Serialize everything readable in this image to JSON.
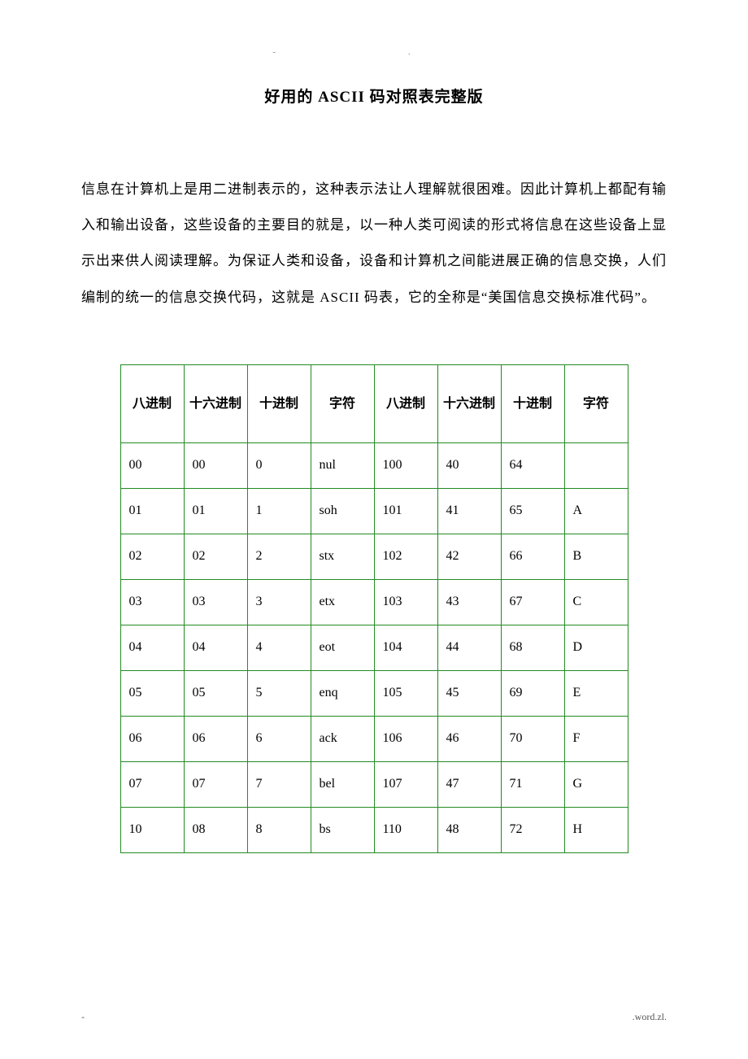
{
  "top_marks": "-  .",
  "title": "好用的 ASCII 码对照表完整版",
  "paragraph": "信息在计算机上是用二进制表示的，这种表示法让人理解就很困难。因此计算机上都配有输入和输出设备，这些设备的主要目的就是，以一种人类可阅读的形式将信息在这些设备上显示出来供人阅读理解。为保证人类和设备，设备和计算机之间能进展正确的信息交换，人们编制的统一的信息交换代码，这就是 ASCII 码表，它的全称是“美国信息交换标准代码”。",
  "table": {
    "border_color": "#228B22",
    "header_bg": "#ffffff",
    "columns": [
      "八进制",
      "十六进制",
      "十进制",
      "字符",
      "八进制",
      "十六进制",
      "十进制",
      "字符"
    ],
    "rows": [
      [
        "00",
        "00",
        "0",
        "nul",
        "100",
        "40",
        "64",
        ""
      ],
      [
        "01",
        "01",
        "1",
        "soh",
        "101",
        "41",
        "65",
        "A"
      ],
      [
        "02",
        "02",
        "2",
        "stx",
        "102",
        "42",
        "66",
        "B"
      ],
      [
        "03",
        "03",
        "3",
        "etx",
        "103",
        "43",
        "67",
        "C"
      ],
      [
        "04",
        "04",
        "4",
        "eot",
        "104",
        "44",
        "68",
        "D"
      ],
      [
        "05",
        "05",
        "5",
        "enq",
        "105",
        "45",
        "69",
        "E"
      ],
      [
        "06",
        "06",
        "6",
        "ack",
        "106",
        "46",
        "70",
        "F"
      ],
      [
        "07",
        "07",
        "7",
        "bel",
        "107",
        "47",
        "71",
        "G"
      ],
      [
        "10",
        "08",
        "8",
        "bs",
        "110",
        "48",
        "72",
        "H"
      ]
    ]
  },
  "footer_left": "-",
  "footer_right": ".word.zl."
}
